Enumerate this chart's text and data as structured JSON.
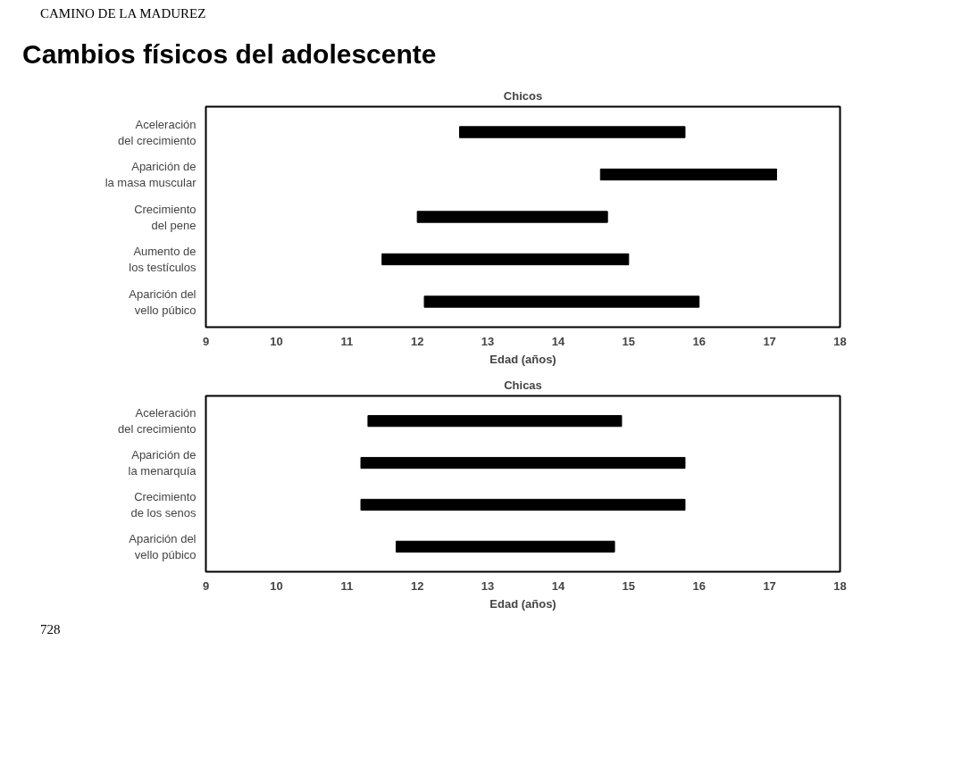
{
  "chart_data": [
    {
      "type": "bar",
      "orientation": "horizontal",
      "title": "Chicos",
      "xlabel": "Edad (años)",
      "annotations": [
        "CAMINO DE LA MADUREZ",
        "Cambios físicos del adolescente"
      ],
      "categories": [
        "Aceleración\ndel crecimiento",
        "Aparición de\nla masa muscular",
        "Crecimiento\ndel pene",
        "Aumento de\nlos testículos",
        "Aparición del\nvello púbico"
      ],
      "xlim": [
        9,
        18
      ],
      "xticks": [
        9,
        10,
        11,
        12,
        13,
        14,
        15,
        16,
        17,
        18
      ],
      "series": [
        {
          "type": "bar",
          "color": "#000000",
          "base": [
            12.6,
            null,
            null,
            null,
            null
          ],
          "values": [
            3.2,
            null,
            null,
            null,
            null
          ]
        },
        {
          "type": "bar",
          "color": "#000000",
          "base": [
            null,
            14.6,
            12.0,
            11.5,
            12.1
          ],
          "values": [
            null,
            2.5,
            2.7,
            3.5,
            3.9
          ]
        }
      ]
    },
    {
      "type": "bar",
      "orientation": "horizontal",
      "title": "Chicas",
      "xlabel": "Edad (años)",
      "annotations": [
        "728"
      ],
      "categories": [
        "Aceleración\ndel crecimiento",
        "Aparición de\nla menarquía",
        "Crecimiento\nde los senos",
        "Aparición del\nvello púbico"
      ],
      "xlim": [
        9,
        18
      ],
      "xticks": [
        9,
        10,
        11,
        12,
        13,
        14,
        15,
        16,
        17,
        18
      ],
      "series": [
        {
          "type": "bar",
          "color": "#000000",
          "base": [
            11.3,
            null,
            null,
            null
          ],
          "values": [
            3.6,
            null,
            null,
            null
          ]
        },
        {
          "type": "bar",
          "color": "#000000",
          "base": [
            null,
            11.2,
            11.2,
            11.7
          ],
          "values": [
            null,
            4.6,
            4.6,
            3.1
          ]
        }
      ]
    }
  ]
}
